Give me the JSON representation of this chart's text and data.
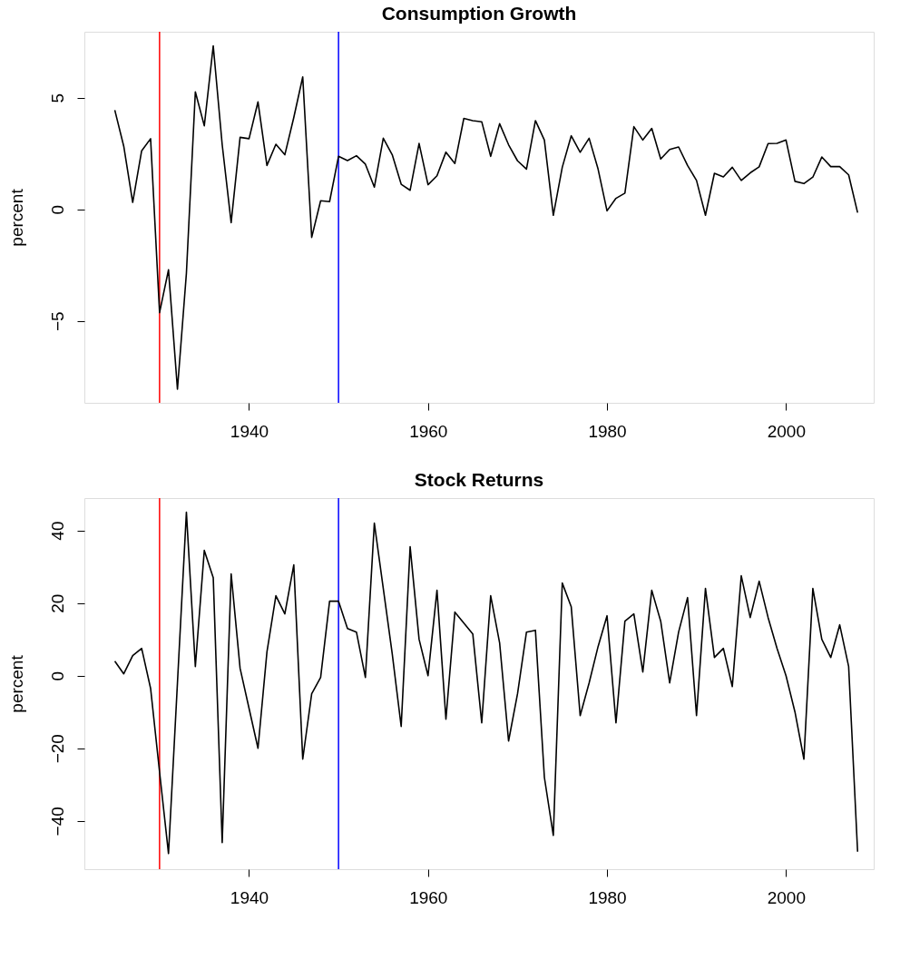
{
  "chart_data": [
    {
      "type": "line",
      "title": "Consumption Growth",
      "ylabel": "percent",
      "color": "#000000",
      "x": [
        1925,
        1926,
        1927,
        1928,
        1929,
        1930,
        1931,
        1932,
        1933,
        1934,
        1935,
        1936,
        1937,
        1938,
        1939,
        1940,
        1941,
        1942,
        1943,
        1944,
        1945,
        1946,
        1947,
        1948,
        1949,
        1950,
        1951,
        1952,
        1953,
        1954,
        1955,
        1956,
        1957,
        1958,
        1959,
        1960,
        1961,
        1962,
        1963,
        1964,
        1965,
        1966,
        1967,
        1968,
        1969,
        1970,
        1971,
        1972,
        1973,
        1974,
        1975,
        1976,
        1977,
        1978,
        1979,
        1980,
        1981,
        1982,
        1983,
        1984,
        1985,
        1986,
        1987,
        1988,
        1989,
        1990,
        1991,
        1992,
        1993,
        1994,
        1995,
        1996,
        1997,
        1998,
        1999,
        2000,
        2001,
        2002,
        2003,
        2004,
        2005,
        2006,
        2007,
        2008
      ],
      "values": [
        4.44,
        2.82,
        0.31,
        2.62,
        3.16,
        -4.63,
        -2.71,
        -8.06,
        -2.87,
        5.26,
        3.74,
        7.32,
        2.89,
        -0.6,
        3.22,
        3.16,
        4.81,
        1.96,
        2.91,
        2.44,
        4.11,
        5.93,
        -1.26,
        0.38,
        0.34,
        2.37,
        2.18,
        2.4,
        2.02,
        0.99,
        3.18,
        2.44,
        1.12,
        0.85,
        2.95,
        1.1,
        1.5,
        2.56,
        2.05,
        4.07,
        3.97,
        3.92,
        2.37,
        3.83,
        2.89,
        2.17,
        1.8,
        3.97,
        3.1,
        -0.27,
        1.88,
        3.29,
        2.55,
        3.18,
        1.8,
        -0.07,
        0.49,
        0.72,
        3.7,
        3.1,
        3.62,
        2.25,
        2.68,
        2.79,
        1.96,
        1.29,
        -0.27,
        1.61,
        1.45,
        1.88,
        1.29,
        1.63,
        1.9,
        2.94,
        2.95,
        3.1,
        1.25,
        1.15,
        1.44,
        2.34,
        1.91,
        1.91,
        1.54,
        -0.15
      ],
      "xlim": [
        1921.6,
        2009.8
      ],
      "ylim": [
        -8.67,
        7.95
      ],
      "xticks": [
        1940,
        1960,
        1980,
        2000
      ],
      "yticks": [
        -5,
        0,
        5
      ],
      "ref_lines": [
        {
          "axis": "x",
          "value": 1930,
          "color": "#ff0000"
        },
        {
          "axis": "x",
          "value": 1950,
          "color": "#0000ff"
        }
      ]
    },
    {
      "type": "line",
      "title": "Stock Returns",
      "ylabel": "percent",
      "color": "#000000",
      "x": [
        1925,
        1926,
        1927,
        1928,
        1929,
        1930,
        1931,
        1932,
        1933,
        1934,
        1935,
        1936,
        1937,
        1938,
        1939,
        1940,
        1941,
        1942,
        1943,
        1944,
        1945,
        1946,
        1947,
        1948,
        1949,
        1950,
        1951,
        1952,
        1953,
        1954,
        1955,
        1956,
        1957,
        1958,
        1959,
        1960,
        1961,
        1962,
        1963,
        1964,
        1965,
        1966,
        1967,
        1968,
        1969,
        1970,
        1971,
        1972,
        1973,
        1974,
        1975,
        1976,
        1977,
        1978,
        1979,
        1980,
        1981,
        1982,
        1983,
        1984,
        1985,
        1986,
        1987,
        1988,
        1989,
        1990,
        1991,
        1992,
        1993,
        1994,
        1995,
        1996,
        1997,
        1998,
        1999,
        2000,
        2001,
        2002,
        2003,
        2004,
        2005,
        2006,
        2007,
        2008
      ],
      "values": [
        4,
        0.5,
        5.5,
        7.5,
        -3.5,
        -26.5,
        -49,
        -2,
        45,
        2.5,
        34.5,
        27,
        -46,
        28,
        2,
        -9,
        -20,
        6.5,
        22,
        17,
        30.5,
        -23,
        -5,
        -0.5,
        20.5,
        20.5,
        13,
        12,
        -0.5,
        42,
        24,
        6,
        -14,
        35.5,
        10,
        0,
        23.5,
        -12,
        17.5,
        14.5,
        11.5,
        -13,
        22,
        9,
        -18,
        -5,
        12,
        12.5,
        -28,
        -44,
        25.5,
        19,
        -11,
        -2,
        8,
        16.5,
        -13,
        15,
        17,
        1,
        23.5,
        15,
        -2,
        12,
        21.5,
        -11,
        24,
        5,
        7.5,
        -3,
        27.5,
        16,
        26,
        16,
        7.5,
        0,
        -10,
        -23,
        24,
        10,
        5,
        14,
        2.5,
        -48.5
      ],
      "xlim": [
        1921.6,
        2009.8
      ],
      "ylim": [
        -53.3,
        48.9
      ],
      "xticks": [
        1940,
        1960,
        1980,
        2000
      ],
      "yticks": [
        -40,
        -20,
        0,
        20,
        40
      ],
      "ref_lines": [
        {
          "axis": "x",
          "value": 1930,
          "color": "#ff0000"
        },
        {
          "axis": "x",
          "value": 1950,
          "color": "#0000ff"
        }
      ]
    }
  ]
}
